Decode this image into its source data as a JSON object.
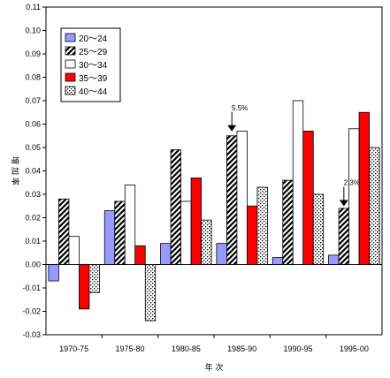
{
  "chart_data": {
    "type": "bar",
    "title": "",
    "xlabel": "年 次",
    "ylabel": "増加率",
    "ylim": [
      -0.03,
      0.11
    ],
    "yticks": [
      "0.11",
      "0.10",
      "0.09",
      "0.08",
      "0.07",
      "0.06",
      "0.05",
      "0.04",
      "0.03",
      "0.02",
      "0.01",
      "0.00",
      "-0.01",
      "-0.02",
      "-0.03"
    ],
    "categories": [
      "1970-75",
      "1975-80",
      "1980-85",
      "1985-90",
      "1990-95",
      "1995-00"
    ],
    "grid": false,
    "legend_position": "top-left",
    "series": [
      {
        "name": "20～24",
        "color": "#9999ff",
        "pattern": "solid",
        "values": [
          -0.007,
          0.023,
          0.009,
          0.009,
          0.003,
          0.004
        ]
      },
      {
        "name": "25～29",
        "color": "#ffffff",
        "pattern": "diagonal-hatch",
        "values": [
          0.028,
          0.027,
          0.049,
          0.055,
          0.036,
          0.024
        ]
      },
      {
        "name": "30～34",
        "color": "#ffffff",
        "pattern": "solid",
        "values": [
          0.012,
          0.034,
          0.027,
          0.057,
          0.07,
          0.058
        ]
      },
      {
        "name": "35～39",
        "color": "#ff0000",
        "pattern": "solid",
        "values": [
          -0.019,
          0.008,
          0.037,
          0.025,
          0.057,
          0.065
        ]
      },
      {
        "name": "40～44",
        "color": "#ffffff",
        "pattern": "dots",
        "values": [
          -0.012,
          -0.024,
          0.019,
          0.033,
          0.03,
          0.05
        ]
      }
    ],
    "annotations": [
      {
        "text": "5.5%",
        "category": "1985-90",
        "value": 0.055
      },
      {
        "text": "2.3%",
        "category": "1995-00",
        "value": 0.023
      }
    ]
  }
}
